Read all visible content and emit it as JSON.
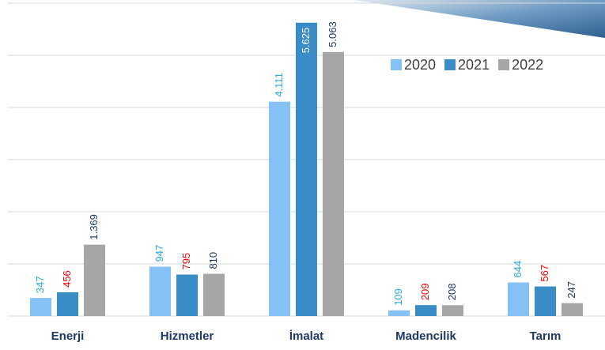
{
  "chart_data": {
    "type": "bar",
    "categories": [
      "Enerji",
      "Hizmetler",
      "İmalat",
      "Madencilik",
      "Tarım"
    ],
    "series": [
      {
        "name": "2020",
        "color": "#85c1f5",
        "label_color": "#2aa9df",
        "values": [
          347,
          947,
          4111,
          109,
          644
        ],
        "value_labels": [
          "347",
          "947",
          "4.111",
          "109",
          "644"
        ]
      },
      {
        "name": "2021",
        "color": "#3a8cc6",
        "label_color": "#ff0000",
        "values": [
          456,
          795,
          5625,
          209,
          567
        ],
        "value_labels": [
          "456",
          "795",
          "5.625",
          "209",
          "567"
        ]
      },
      {
        "name": "2022",
        "color": "#a6a6a6",
        "label_color": "#1f3864",
        "values": [
          1369,
          810,
          5063,
          208,
          247
        ],
        "value_labels": [
          "1.369",
          "810",
          "5.063",
          "208",
          "247"
        ]
      }
    ],
    "ylim": [
      0,
      6000
    ],
    "yticks": [
      0,
      1000,
      2000,
      3000,
      4000,
      5000,
      6000
    ],
    "grid": true,
    "legend": "upper right"
  }
}
